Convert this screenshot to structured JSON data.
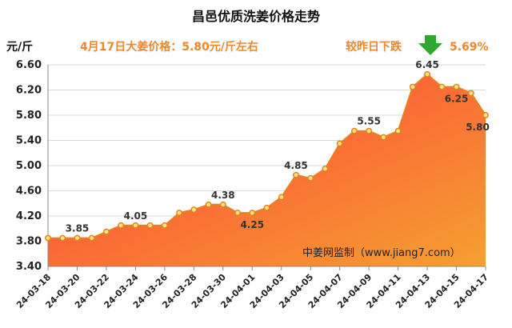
{
  "chart_data": {
    "type": "area",
    "title": "昌邑优质洗姜价格走势",
    "ylabel": "元/斤",
    "annotation_left": "4月17日大姜价格：5.80元/斤左右",
    "annotation_right": "较昨日下跌",
    "annotation_pct": "5.69%",
    "watermark": "中姜网监制（www.jiang7.com）",
    "ylim": [
      3.4,
      6.6
    ],
    "yticks": [
      "3.40",
      "3.80",
      "4.20",
      "4.60",
      "5.00",
      "5.40",
      "5.80",
      "6.20",
      "6.60"
    ],
    "xtick_labels": [
      "24-03-18",
      "24-03-20",
      "24-03-22",
      "24-03-24",
      "24-03-26",
      "24-03-28",
      "24-03-30",
      "24-04-01",
      "24-04-03",
      "24-04-05",
      "24-04-07",
      "24-04-09",
      "24-04-11",
      "24-04-13",
      "24-04-15",
      "24-04-17"
    ],
    "x": [
      "24-03-18",
      "24-03-19",
      "24-03-20",
      "24-03-21",
      "24-03-22",
      "24-03-23",
      "24-03-24",
      "24-03-25",
      "24-03-26",
      "24-03-27",
      "24-03-28",
      "24-03-29",
      "24-03-30",
      "24-03-31",
      "24-04-01",
      "24-04-02",
      "24-04-03",
      "24-04-04",
      "24-04-05",
      "24-04-06",
      "24-04-07",
      "24-04-08",
      "24-04-09",
      "24-04-10",
      "24-04-11",
      "24-04-12",
      "24-04-13",
      "24-04-14",
      "24-04-15",
      "24-04-16",
      "24-04-17"
    ],
    "values": [
      3.85,
      3.85,
      3.85,
      3.85,
      3.95,
      4.05,
      4.05,
      4.05,
      4.05,
      4.25,
      4.3,
      4.38,
      4.38,
      4.25,
      4.25,
      4.33,
      4.5,
      4.85,
      4.8,
      4.95,
      5.35,
      5.55,
      5.55,
      5.45,
      5.55,
      6.25,
      6.45,
      6.25,
      6.25,
      6.15,
      5.8
    ],
    "data_labels": [
      {
        "index": 2,
        "text": "3.85"
      },
      {
        "index": 6,
        "text": "4.05"
      },
      {
        "index": 12,
        "text": "4.38"
      },
      {
        "index": 14,
        "text": "4.25"
      },
      {
        "index": 17,
        "text": "4.85"
      },
      {
        "index": 22,
        "text": "5.55"
      },
      {
        "index": 26,
        "text": "6.45"
      },
      {
        "index": 28,
        "text": "6.25"
      },
      {
        "index": 30,
        "text": "5.80"
      }
    ],
    "colors": {
      "area_top": "#ff3a3a",
      "area_bottom": "#f5a030",
      "line": "#e8811e",
      "marker_fill": "#ffe680",
      "annotation": "#f0862d",
      "arrow": "#2ea82e"
    },
    "grid": true,
    "legend": "none"
  }
}
